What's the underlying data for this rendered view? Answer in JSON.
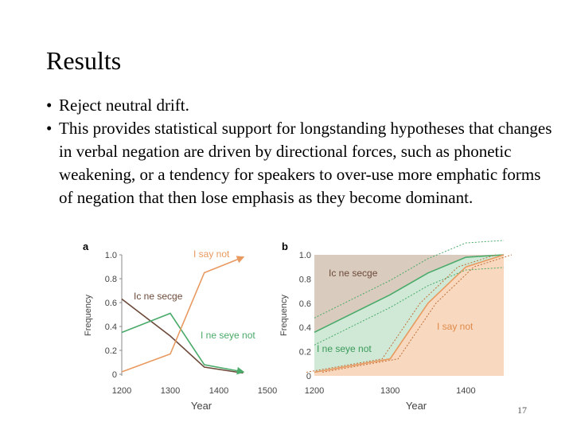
{
  "slide": {
    "title": "Results",
    "bullets": [
      "Reject neutral drift.",
      "This provides statistical support for longstanding hypotheses that changes in verbal negation are driven by directional forces, such as phonetic weakening, or a tendency for speakers to over-use more emphatic forms of negation that then lose emphasis as they become dominant."
    ],
    "page_number": "17"
  },
  "chart_data": [
    {
      "panel": "a",
      "type": "line",
      "xlabel": "Year",
      "ylabel": "Frequency",
      "x_ticks": [
        "1200",
        "1300",
        "1400",
        "1500"
      ],
      "y_ticks": [
        "0",
        "0.2",
        "0.4",
        "0.6",
        "0.8",
        "1.0"
      ],
      "xlim": [
        1200,
        1500
      ],
      "ylim": [
        0,
        1
      ],
      "series": [
        {
          "name": "Ic ne secge",
          "color": "#6b4a3a",
          "x": [
            1200,
            1300,
            1370,
            1450
          ],
          "values": [
            0.63,
            0.32,
            0.06,
            0.01
          ]
        },
        {
          "name": "I ne seye not",
          "color": "#4aaa6a",
          "x": [
            1200,
            1300,
            1370,
            1450
          ],
          "values": [
            0.35,
            0.51,
            0.08,
            0.02
          ]
        },
        {
          "name": "I say not",
          "color": "#e89a60",
          "x": [
            1200,
            1300,
            1370,
            1450
          ],
          "values": [
            0.02,
            0.17,
            0.85,
            0.98
          ]
        }
      ]
    },
    {
      "panel": "b",
      "type": "area",
      "xlabel": "Year",
      "ylabel": "Frequency",
      "x_ticks": [
        "1200",
        "1300",
        "1400"
      ],
      "y_ticks": [
        "0",
        "0.2",
        "0.4",
        "0.6",
        "0.8",
        "1.0"
      ],
      "xlim": [
        1200,
        1450
      ],
      "ylim": [
        0,
        1
      ],
      "series": [
        {
          "name": "Ic ne secge",
          "color": "#d9cbbd",
          "x": [
            1200,
            1300,
            1350,
            1400,
            1450
          ],
          "values": [
            1.0,
            1.0,
            1.0,
            1.0,
            1.0
          ]
        },
        {
          "name": "I ne seye not",
          "color": "#cfe9d6",
          "x": [
            1200,
            1300,
            1350,
            1400,
            1450
          ],
          "values": [
            0.36,
            0.67,
            0.85,
            0.98,
            1.0
          ]
        },
        {
          "name": "I say not",
          "color": "#f8d9bf",
          "x": [
            1200,
            1300,
            1350,
            1400,
            1450
          ],
          "values": [
            0.03,
            0.14,
            0.6,
            0.9,
            1.0
          ]
        }
      ]
    }
  ]
}
